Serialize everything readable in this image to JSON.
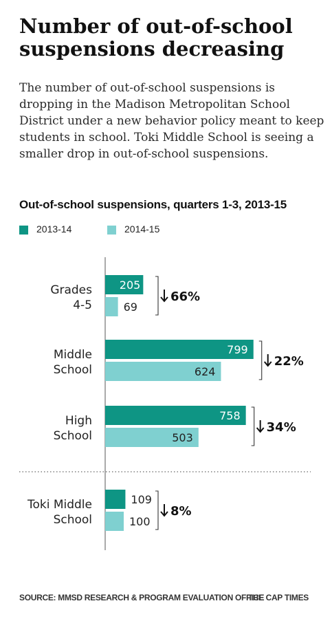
{
  "headline": "Number of out-of-school suspensions decreasing",
  "subhead": "The number of out-of-school suspensions is dropping in the Madison Metropolitan School District under a new behavior policy meant to keep students in school. Toki Middle School is seeing a smaller drop in out-of-school suspensions.",
  "source": "SOURCE: MMSD RESEARCH & PROGRAM EVALUATION OFFICE",
  "credit": "THE CAP TIMES",
  "chart_data": {
    "type": "bar",
    "orientation": "horizontal",
    "title": "Out-of-school suspensions, quarters 1-3, 2013-15",
    "categories": [
      [
        "Grades",
        "4-5"
      ],
      [
        "Middle",
        "School"
      ],
      [
        "High",
        "School"
      ],
      [
        "Toki Middle",
        "School"
      ]
    ],
    "series": [
      {
        "name": "2013-14",
        "color": "#0e9584",
        "values": [
          205,
          799,
          758,
          109
        ]
      },
      {
        "name": "2014-15",
        "color": "#7fd0d0",
        "values": [
          69,
          624,
          503,
          100
        ]
      }
    ],
    "changes": [
      "66%",
      "22%",
      "34%",
      "8%"
    ],
    "xlim": [
      0,
      800
    ],
    "grid": false,
    "legend_position": "top-left",
    "separator_before_category": 3
  }
}
